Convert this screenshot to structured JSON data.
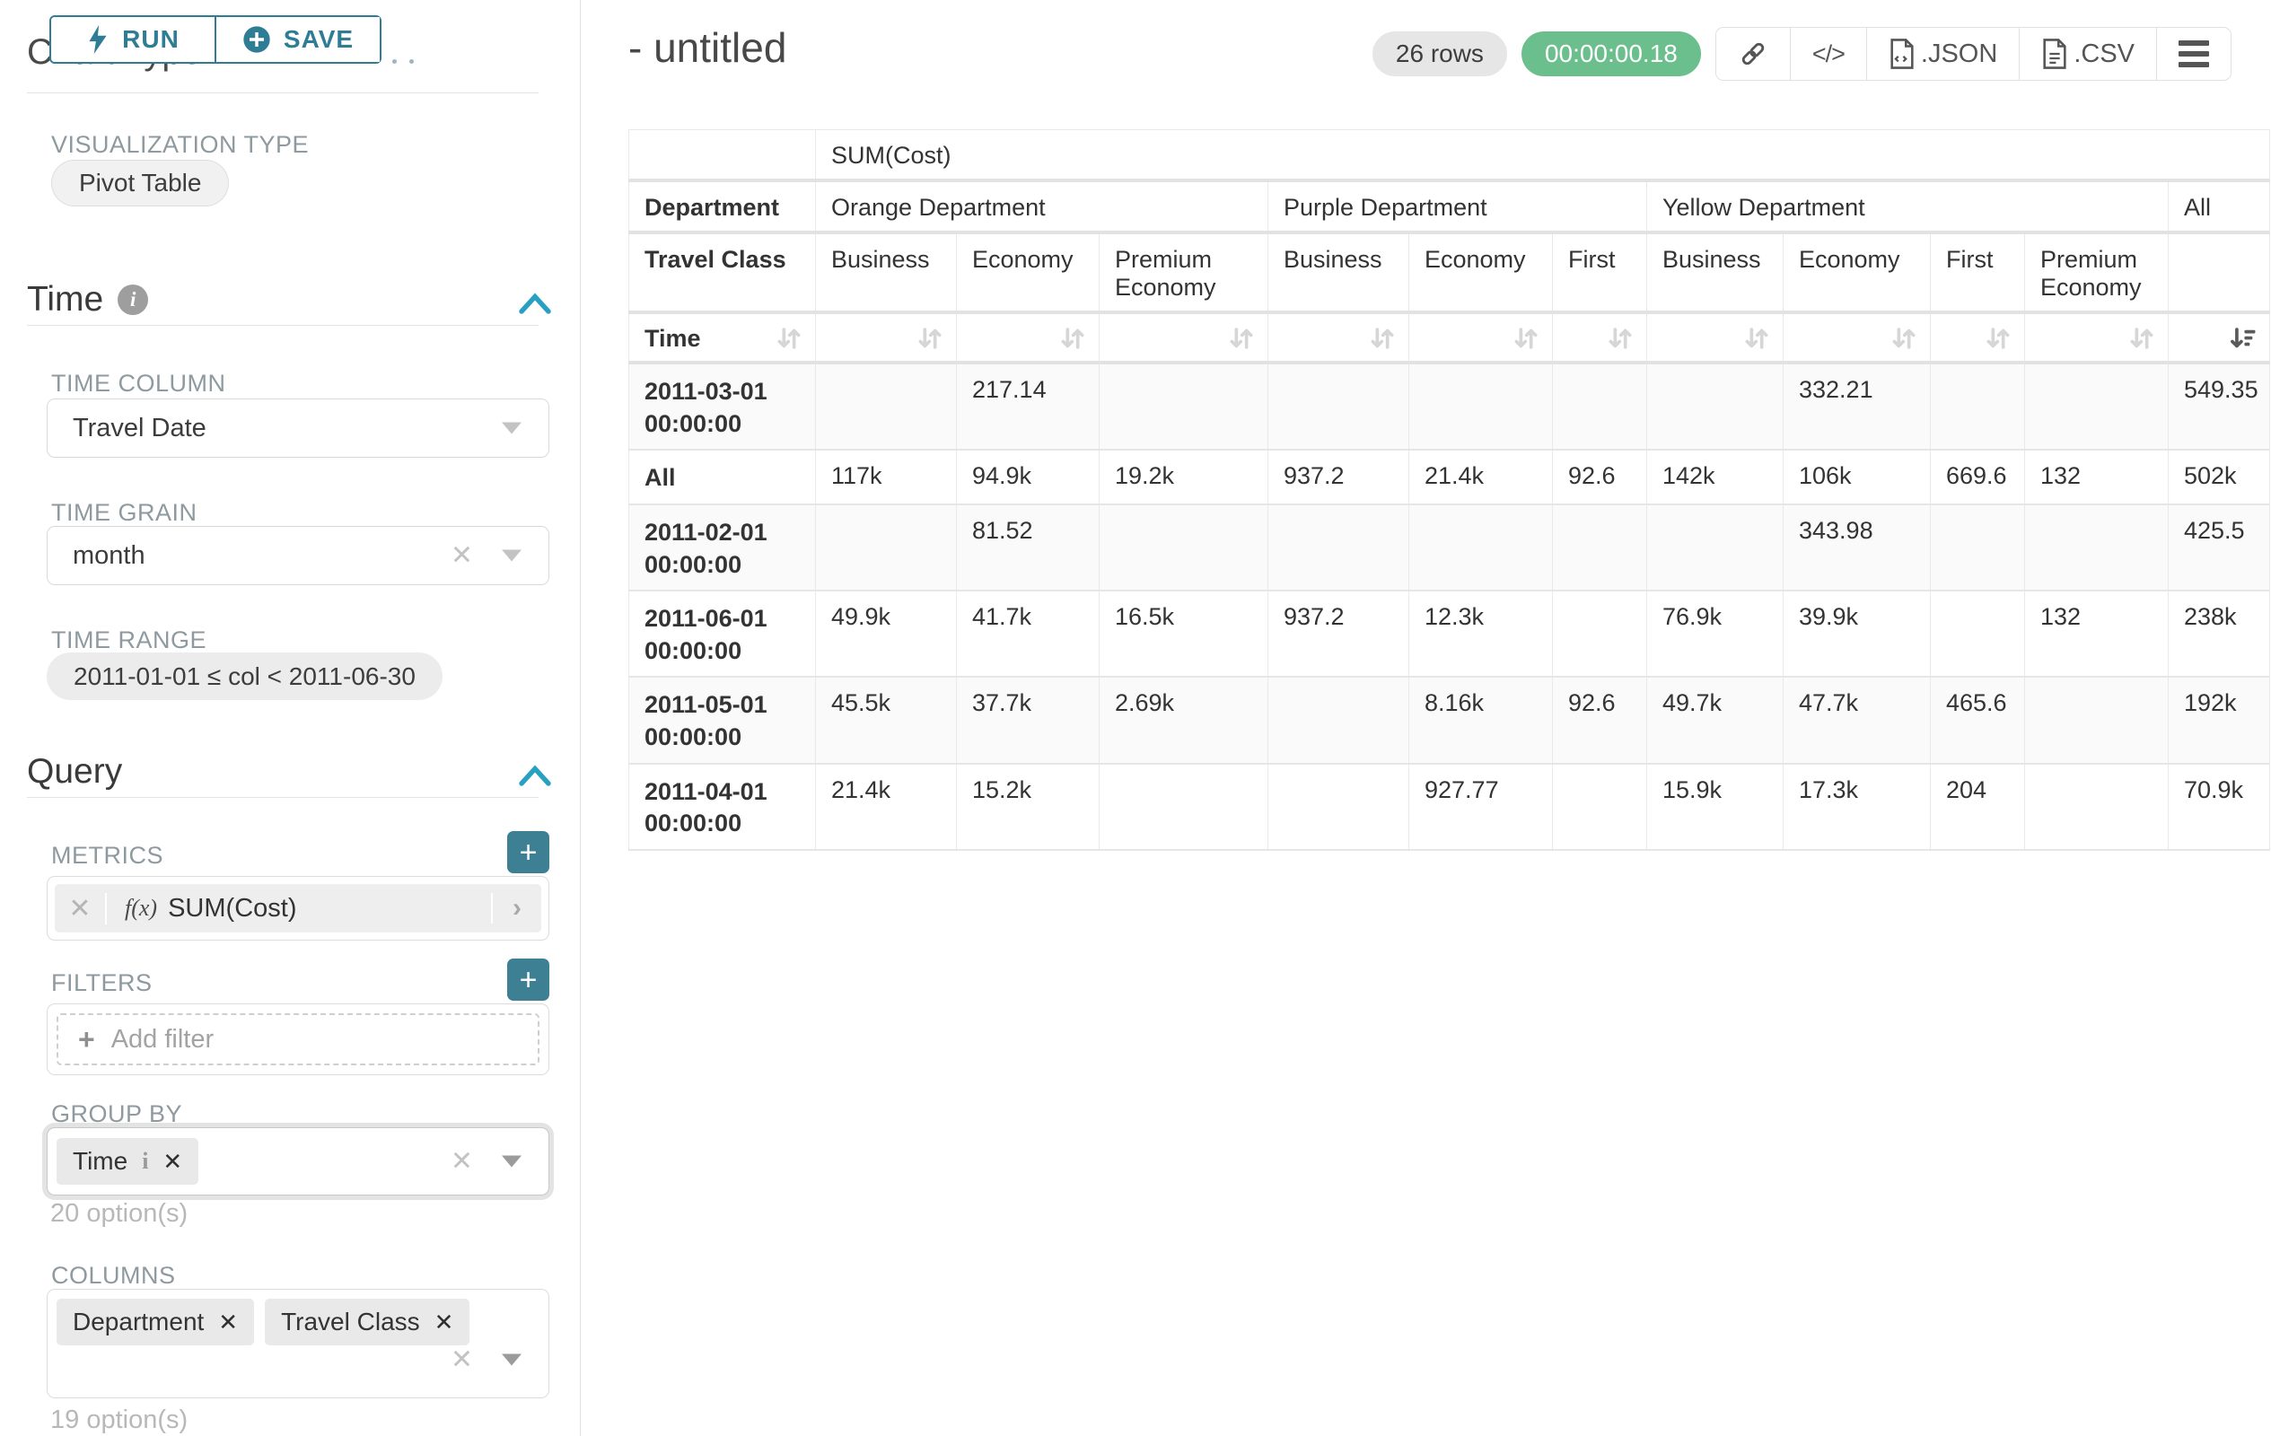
{
  "toolbar": {
    "run_label": "RUN",
    "save_label": "SAVE"
  },
  "panel": {
    "section_chart_type": "Chart Type",
    "viz_type_label": "VISUALIZATION TYPE",
    "viz_type_value": "Pivot Table",
    "time_section": {
      "title": "Time",
      "column_label": "TIME COLUMN",
      "column_value": "Travel Date",
      "grain_label": "TIME GRAIN",
      "grain_value": "month",
      "range_label": "TIME RANGE",
      "range_value": "2011-01-01 ≤ col < 2011-06-30"
    },
    "query_section": {
      "title": "Query",
      "metrics_label": "METRICS",
      "metric_fx": "f(x)",
      "metric_value": "SUM(Cost)",
      "filters_label": "FILTERS",
      "add_filter_label": "Add filter",
      "group_by_label": "GROUP BY",
      "group_by_tags": [
        "Time"
      ],
      "group_by_helper": "20 option(s)",
      "columns_label": "COLUMNS",
      "columns_tags": [
        "Department",
        "Travel Class"
      ],
      "columns_helper": "19 option(s)"
    }
  },
  "header": {
    "title": "- untitled",
    "row_count": "26 rows",
    "timer": "00:00:00.18",
    "json_label": ".JSON",
    "csv_label": ".CSV"
  },
  "chart_data": {
    "type": "table",
    "metric_header": "SUM(Cost)",
    "corner_department": "Department",
    "corner_travel_class": "Travel Class",
    "corner_time": "Time",
    "groups": [
      {
        "label": "Orange Department",
        "cols": [
          "Business",
          "Economy",
          "Premium Economy"
        ]
      },
      {
        "label": "Purple Department",
        "cols": [
          "Business",
          "Economy",
          "First"
        ]
      },
      {
        "label": "Yellow Department",
        "cols": [
          "Business",
          "Economy",
          "First",
          "Premium Economy"
        ]
      },
      {
        "label": "All",
        "cols": [
          ""
        ]
      }
    ],
    "sort_active": "All",
    "rows": [
      {
        "label": "2011-03-01 00:00:00",
        "values": [
          "",
          "217.14",
          "",
          "",
          "",
          "",
          "",
          "332.21",
          "",
          "",
          "549.35"
        ]
      },
      {
        "label": "All",
        "values": [
          "117k",
          "94.9k",
          "19.2k",
          "937.2",
          "21.4k",
          "92.6",
          "142k",
          "106k",
          "669.6",
          "132",
          "502k"
        ]
      },
      {
        "label": "2011-02-01 00:00:00",
        "values": [
          "",
          "81.52",
          "",
          "",
          "",
          "",
          "",
          "343.98",
          "",
          "",
          "425.5"
        ]
      },
      {
        "label": "2011-06-01 00:00:00",
        "values": [
          "49.9k",
          "41.7k",
          "16.5k",
          "937.2",
          "12.3k",
          "",
          "76.9k",
          "39.9k",
          "",
          "132",
          "238k"
        ]
      },
      {
        "label": "2011-05-01 00:00:00",
        "values": [
          "45.5k",
          "37.7k",
          "2.69k",
          "",
          "8.16k",
          "92.6",
          "49.7k",
          "47.7k",
          "465.6",
          "",
          "192k"
        ]
      },
      {
        "label": "2011-04-01 00:00:00",
        "values": [
          "21.4k",
          "15.2k",
          "",
          "",
          "927.77",
          "",
          "15.9k",
          "17.3k",
          "204",
          "",
          "70.9k"
        ]
      }
    ]
  },
  "colors": {
    "accent_teal": "#2e7d95",
    "plus_button_teal": "#3d7f93",
    "timer_green": "#6abf8c",
    "label_gray": "#8e9a9f"
  }
}
